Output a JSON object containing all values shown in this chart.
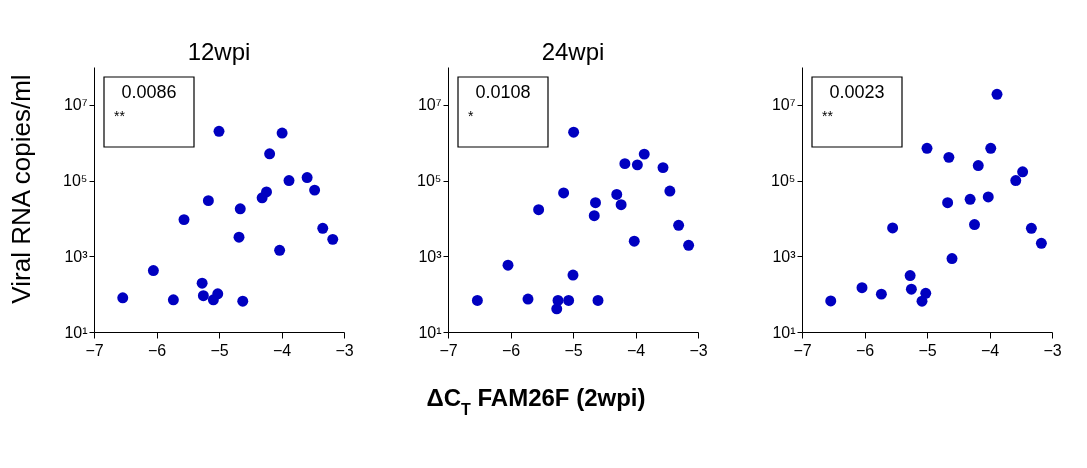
{
  "chart_data": [
    {
      "type": "scatter",
      "title": "12wpi",
      "ylabel": "Viral RNA copies/ml",
      "color": "#0000c0",
      "marker": "circle",
      "log": "y",
      "xlim": [
        -7,
        -3
      ],
      "xticks": [
        -7,
        -6,
        -5,
        -4,
        -3
      ],
      "ylim": [
        10,
        100000000
      ],
      "yticks": [
        {
          "value": 10,
          "label": "10¹"
        },
        {
          "value": 1000,
          "label": "10³"
        },
        {
          "value": 100000,
          "label": "10⁵"
        },
        {
          "value": 10000000,
          "label": "10⁷"
        }
      ],
      "annotations": [
        "0.0086",
        "**"
      ],
      "x": [
        -6.54,
        -6.05,
        -5.73,
        -5.56,
        -5.27,
        -5.25,
        -5.17,
        -5.09,
        -5.02,
        -5.0,
        -4.68,
        -4.66,
        -4.62,
        -4.31,
        -4.24,
        -4.19,
        -4.03,
        -3.99,
        -3.88,
        -3.59,
        -3.47,
        -3.34,
        -3.18
      ],
      "values": [
        80,
        420,
        71,
        9300,
        195,
        91,
        29500,
        71,
        102,
        2000000,
        3200,
        18000,
        65,
        35000,
        50000,
        510000,
        1440,
        1800000,
        100000,
        120000,
        56000,
        5500,
        2800
      ]
    },
    {
      "type": "scatter",
      "title": "24wpi",
      "xlabel": "ΔC$_{T}$ FAM26F (2wpi)",
      "color": "#0000c0",
      "marker": "circle",
      "log": "y",
      "xlim": [
        -7,
        -3
      ],
      "xticks": [
        -7,
        -6,
        -5,
        -4,
        -3
      ],
      "ylim": [
        10,
        100000000
      ],
      "yticks": [
        {
          "value": 10,
          "label": "10¹"
        },
        {
          "value": 1000,
          "label": "10³"
        },
        {
          "value": 100000,
          "label": "10⁵"
        },
        {
          "value": 10000000,
          "label": "10⁷"
        }
      ],
      "annotations": [
        "0.0108",
        "*"
      ],
      "x": [
        -6.53,
        -6.04,
        -5.72,
        -5.55,
        -5.26,
        -5.24,
        -5.15,
        -5.07,
        -5.0,
        -4.99,
        -4.66,
        -4.64,
        -4.6,
        -4.3,
        -4.23,
        -4.17,
        -4.02,
        -3.97,
        -3.86,
        -3.56,
        -3.45,
        -3.31,
        -3.15
      ],
      "values": [
        68,
        580,
        74,
        17000,
        41,
        68,
        47000,
        68,
        320,
        1900000,
        11800,
        26000,
        68,
        43000,
        23000,
        280000,
        2500,
        260000,
        500000,
        220000,
        53000,
        6600,
        1950
      ]
    },
    {
      "type": "scatter",
      "color": "#0000c0",
      "marker": "circle",
      "log": "y",
      "xlim": [
        -7,
        -3
      ],
      "xticks": [
        -7,
        -6,
        -5,
        -4,
        -3
      ],
      "ylim": [
        10,
        100000000
      ],
      "yticks": [
        {
          "value": 10,
          "label": "10¹"
        },
        {
          "value": 1000,
          "label": "10³"
        },
        {
          "value": 100000,
          "label": "10⁵"
        },
        {
          "value": 10000000,
          "label": "10⁷"
        }
      ],
      "annotations": [
        "0.0023",
        "**"
      ],
      "x": [
        -6.54,
        -6.04,
        -5.73,
        -5.55,
        -5.27,
        -5.25,
        -5.08,
        -5.02,
        -5.0,
        -4.67,
        -4.65,
        -4.6,
        -4.31,
        -4.24,
        -4.18,
        -4.02,
        -3.98,
        -3.88,
        -3.58,
        -3.47,
        -3.33,
        -3.17
      ],
      "values": [
        66,
        148,
        100,
        5600,
        310,
        135,
        65,
        105,
        710000,
        26000,
        410000,
        870,
        32000,
        6900,
        250000,
        37000,
        710000,
        19000000,
        100000,
        170000,
        5500,
        2200
      ]
    }
  ]
}
